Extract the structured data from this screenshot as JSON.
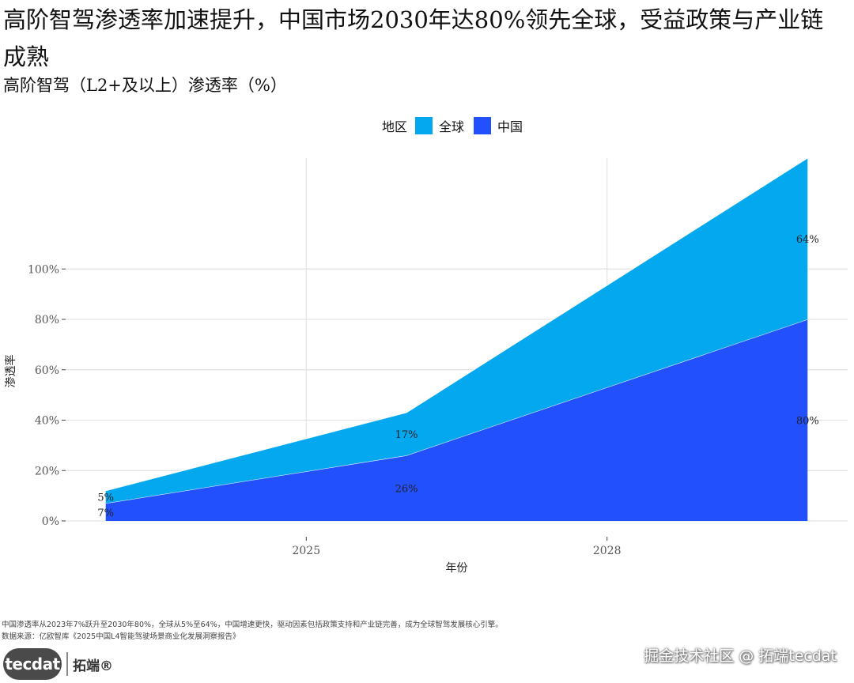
{
  "header": {
    "title": "高阶智驾渗透率加速提升，中国市场2030年达80%领先全球，受益政策与产业链成熟",
    "subtitle": "高阶智驾（L2+及以上）渗透率（%）"
  },
  "legend": {
    "title": "地区",
    "items": [
      {
        "label": "全球",
        "color": "#04A8EE"
      },
      {
        "label": "中国",
        "color": "#2350FD"
      }
    ]
  },
  "chart_data": {
    "type": "area",
    "stacked": true,
    "x": [
      2023,
      2026,
      2030
    ],
    "series": [
      {
        "name": "中国",
        "values": [
          7,
          26,
          80
        ],
        "labels": [
          "7%",
          "26%",
          "80%"
        ],
        "color": "#2350FD"
      },
      {
        "name": "全球",
        "values": [
          5,
          17,
          64
        ],
        "labels": [
          "5%",
          "17%",
          "64%"
        ],
        "color": "#04A8EE"
      }
    ],
    "xlabel": "年份",
    "ylabel": "渗透率",
    "xticks": [
      2025,
      2028
    ],
    "xtick_labels": [
      "2025",
      "2028"
    ],
    "yticks": [
      0,
      20,
      40,
      60,
      80,
      100
    ],
    "ytick_labels": [
      "0%",
      "20%",
      "40%",
      "60%",
      "80%",
      "100%"
    ],
    "xlim": [
      2022.6,
      2030.4
    ],
    "ylim": [
      0,
      144
    ],
    "grid": true
  },
  "footer": {
    "note": "中国渗透率从2023年7%跃升至2030年80%，全球从5%至64%，中国增速更快，驱动因素包括政策支持和产业链完善，成为全球智驾发展核心引擎。",
    "source": "数据来源：亿欧智库《2025中国L4智能驾驶场景商业化发展洞察报告》",
    "logo_text": "tecdat",
    "logo_cn": "拓端®",
    "watermark": "掘金技术社区 @ 拓端tecdat"
  }
}
